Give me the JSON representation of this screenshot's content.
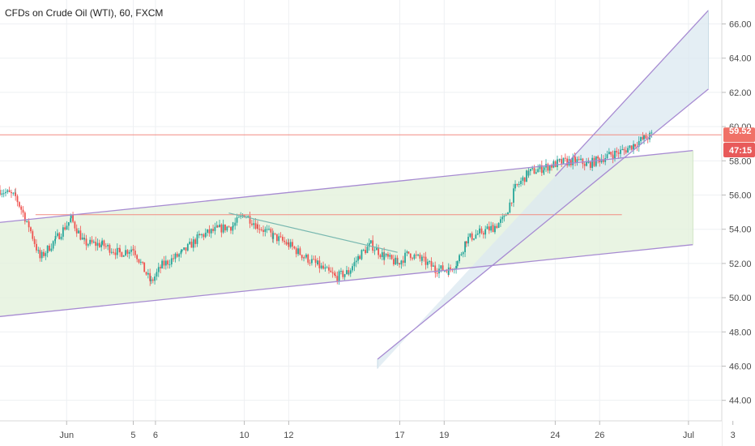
{
  "header": {
    "title": "CFDs on Crude Oil (WTI), 60, FXCM"
  },
  "colors": {
    "up": "#26a69a",
    "down": "#ef5350",
    "grid": "#eef0f3",
    "hline": "#f28b82",
    "channel": "#a78bd2",
    "green_fill": "#e3f1dc",
    "blue_fill": "#dbe8f0",
    "trend": "#78b8b0"
  },
  "price_badges": {
    "last": "59.52",
    "countdown": "47:15"
  },
  "chart_data": {
    "type": "candlestick",
    "title": "CFDs on Crude Oil (WTI), 60, FXCM",
    "ylim": [
      42.8,
      67.4
    ],
    "y_ticks": [
      "44.00",
      "46.00",
      "48.00",
      "50.00",
      "52.00",
      "54.00",
      "56.00",
      "58.00",
      "60.00",
      "62.00",
      "64.00",
      "66.00"
    ],
    "x_ticks": [
      "Jun",
      "5",
      "6",
      "10",
      "12",
      "17",
      "19",
      "24",
      "26",
      "Jul",
      "3"
    ],
    "xlim": [
      -3,
      29.5
    ],
    "x_tick_positions": [
      0,
      3,
      4,
      8,
      10,
      15,
      17,
      22,
      24,
      28,
      30
    ],
    "price_path": [
      [
        -3,
        56.3
      ],
      [
        -2.3,
        55.9
      ],
      [
        -1.7,
        54.2
      ],
      [
        -1.2,
        52.3
      ],
      [
        -0.5,
        53.4
      ],
      [
        0.2,
        54.6
      ],
      [
        0.8,
        53.2
      ],
      [
        1.6,
        53.1
      ],
      [
        2.4,
        52.6
      ],
      [
        3.0,
        52.9
      ],
      [
        3.5,
        51.6
      ],
      [
        3.8,
        50.9
      ],
      [
        4.3,
        51.9
      ],
      [
        5.2,
        52.6
      ],
      [
        6.0,
        53.6
      ],
      [
        6.8,
        54.0
      ],
      [
        7.5,
        54.2
      ],
      [
        8.0,
        54.9
      ],
      [
        8.6,
        54.2
      ],
      [
        9.3,
        53.6
      ],
      [
        10.0,
        53.1
      ],
      [
        10.7,
        52.4
      ],
      [
        11.3,
        51.9
      ],
      [
        12.1,
        51.2
      ],
      [
        12.7,
        51.5
      ],
      [
        13.2,
        52.5
      ],
      [
        13.7,
        53.1
      ],
      [
        14.3,
        52.4
      ],
      [
        14.9,
        52.0
      ],
      [
        15.4,
        52.6
      ],
      [
        16.0,
        52.2
      ],
      [
        16.6,
        51.7
      ],
      [
        17.2,
        51.6
      ],
      [
        17.6,
        52.1
      ],
      [
        18.0,
        53.4
      ],
      [
        18.6,
        53.8
      ],
      [
        19.2,
        54.1
      ],
      [
        19.7,
        54.6
      ],
      [
        20.2,
        56.4
      ],
      [
        20.8,
        57.3
      ],
      [
        21.5,
        57.6
      ],
      [
        22.2,
        57.9
      ],
      [
        22.9,
        58.0
      ],
      [
        23.5,
        57.8
      ],
      [
        24.0,
        58.1
      ],
      [
        24.6,
        58.4
      ],
      [
        25.1,
        58.6
      ],
      [
        25.6,
        59.0
      ],
      [
        26.0,
        59.3
      ],
      [
        26.4,
        59.52
      ]
    ],
    "horizontal_lines": [
      {
        "y": 59.52,
        "x_from": -3,
        "x_to": 29.5
      },
      {
        "y": 54.85,
        "x_from": -1.4,
        "x_to": 25.0
      }
    ],
    "trend_lines": [
      {
        "points": [
          [
            7.3,
            54.95
          ],
          [
            14.9,
            52.65
          ]
        ]
      }
    ],
    "channels": [
      {
        "upper": [
          [
            -3,
            54.4
          ],
          [
            28.2,
            58.6
          ]
        ],
        "lower": [
          [
            -3,
            48.9
          ],
          [
            28.2,
            53.1
          ]
        ]
      },
      {
        "upper": [
          [
            22.0,
            57.1
          ],
          [
            28.9,
            66.8
          ]
        ],
        "lower": [
          [
            14.0,
            46.4
          ],
          [
            28.9,
            62.2
          ]
        ],
        "fill_from": 14.0
      }
    ]
  }
}
